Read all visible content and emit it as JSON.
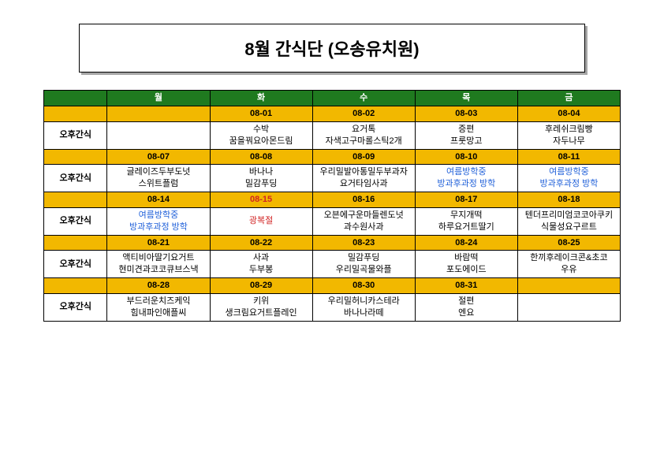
{
  "title": "8월 간식단 (오송유치원)",
  "colors": {
    "header_bg": "#1f7a1f",
    "header_fg": "#ffffff",
    "date_bg": "#f2b800",
    "vacation_fg": "#1e5fd9",
    "holiday_fg": "#d12424",
    "border": "#000000"
  },
  "rowLabel": "오후간식",
  "days": [
    "월",
    "화",
    "수",
    "목",
    "금"
  ],
  "weeks": [
    {
      "dates": [
        "",
        "08-01",
        "08-02",
        "08-03",
        "08-04"
      ],
      "snacks": [
        [],
        [
          "수박",
          "꿈을꿔요아몬드림"
        ],
        [
          "요거톡",
          "자색고구마롤스틱2개"
        ],
        [
          "증편",
          "프룻망고"
        ],
        [
          "후레쉬크림빵",
          "자두나무"
        ]
      ],
      "styles": [
        null,
        null,
        null,
        null,
        null
      ]
    },
    {
      "dates": [
        "08-07",
        "08-08",
        "08-09",
        "08-10",
        "08-11"
      ],
      "snacks": [
        [
          "글레이즈두부도넛",
          "스위트플럼"
        ],
        [
          "바나나",
          "밀감푸딩"
        ],
        [
          "우리밀발아통밀두부과자",
          "요거타임사과"
        ],
        [
          "여름방학중",
          "방과후과정 방학"
        ],
        [
          "여름방학중",
          "방과후과정 방학"
        ]
      ],
      "styles": [
        null,
        null,
        null,
        "vac",
        "vac"
      ]
    },
    {
      "dates": [
        "08-14",
        "08-15",
        "08-16",
        "08-17",
        "08-18"
      ],
      "dateStyles": [
        null,
        "hol",
        null,
        null,
        null
      ],
      "snacks": [
        [
          "여름방학중",
          "방과후과정 방학"
        ],
        [
          "광복절"
        ],
        [
          "오븐에구운마들렌도넛",
          "과수원사과"
        ],
        [
          "무지개떡",
          "하루요거트딸기"
        ],
        [
          "텐더프리미엄코코아쿠키",
          "식물성요구르트"
        ]
      ],
      "styles": [
        "vac",
        "hol",
        null,
        null,
        null
      ]
    },
    {
      "dates": [
        "08-21",
        "08-22",
        "08-23",
        "08-24",
        "08-25"
      ],
      "snacks": [
        [
          "액티비아딸기요거트",
          "현미견과코코큐브스낵"
        ],
        [
          "사과",
          "두부봉"
        ],
        [
          "밀감푸딩",
          "우리밀곡물와플"
        ],
        [
          "바람떡",
          "포도에이드"
        ],
        [
          "한끼후레이크콘&초코",
          "우유"
        ]
      ],
      "styles": [
        null,
        null,
        null,
        null,
        null
      ]
    },
    {
      "dates": [
        "08-28",
        "08-29",
        "08-30",
        "08-31",
        ""
      ],
      "snacks": [
        [
          "부드러운치즈케익",
          "힘내파인애플씨"
        ],
        [
          "키위",
          "생크림요거트플레인"
        ],
        [
          "우리밀허니카스테라",
          "바나나라떼"
        ],
        [
          "절편",
          "엔요"
        ],
        []
      ],
      "styles": [
        null,
        null,
        null,
        null,
        null
      ]
    }
  ]
}
